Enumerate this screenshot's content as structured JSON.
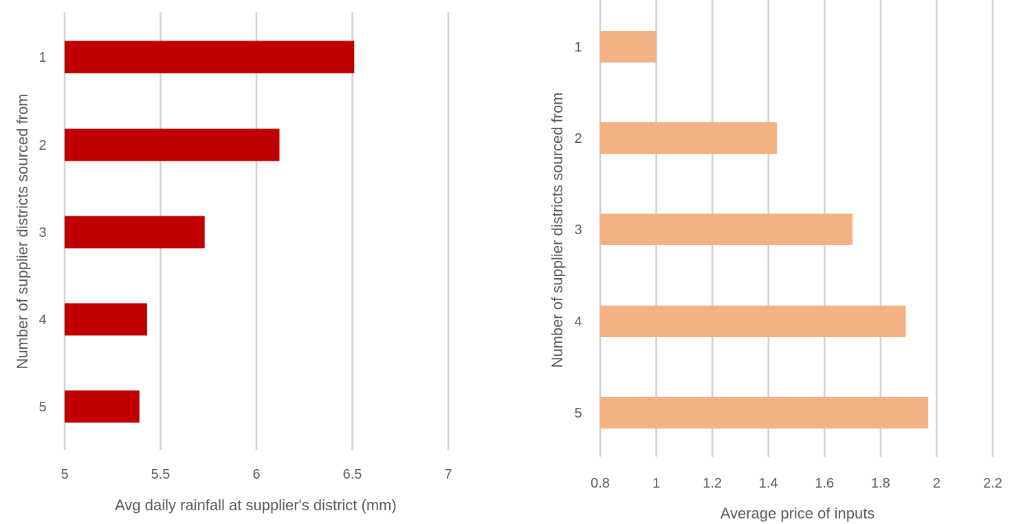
{
  "chart_data": [
    {
      "type": "bar",
      "orientation": "horizontal",
      "categories": [
        "1",
        "2",
        "3",
        "4",
        "5"
      ],
      "values": [
        6.51,
        6.12,
        5.73,
        5.43,
        5.39
      ],
      "xlabel": "Avg daily rainfall at supplier's district (mm)",
      "ylabel": "Number of supplier districts sourced from",
      "xlim": [
        5,
        7
      ],
      "xticks": [
        "5",
        "5.5",
        "6",
        "6.5",
        "7"
      ],
      "grid": true,
      "color": "#c00000"
    },
    {
      "type": "bar",
      "orientation": "horizontal",
      "categories": [
        "1",
        "2",
        "3",
        "4",
        "5"
      ],
      "values": [
        1.0,
        1.43,
        1.7,
        1.89,
        1.97
      ],
      "xlabel": "Average price of inputs",
      "ylabel": "Number of supplier districts sourced from",
      "xlim": [
        0.8,
        2.2
      ],
      "xticks": [
        "0.8",
        "1",
        "1.2",
        "1.4",
        "1.6",
        "1.8",
        "2",
        "2.2"
      ],
      "grid": true,
      "color": "#f4b183"
    }
  ]
}
